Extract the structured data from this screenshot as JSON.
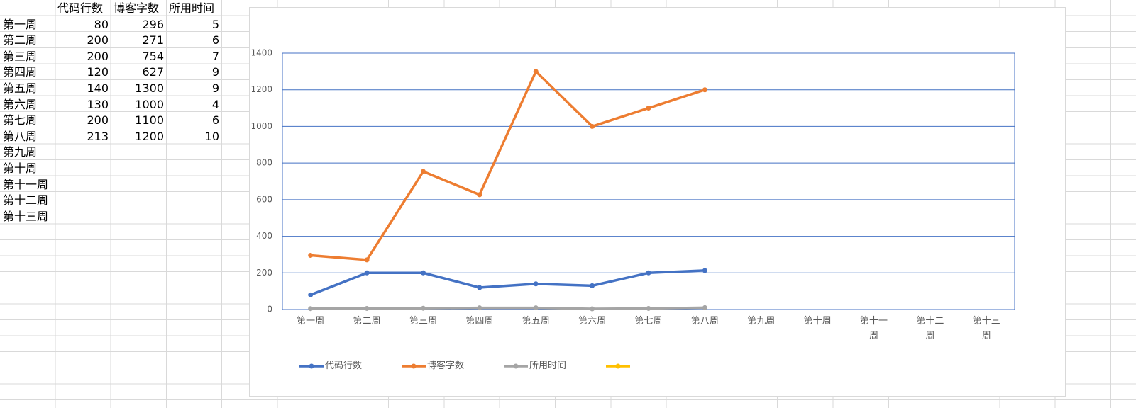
{
  "chart_data": {
    "type": "line",
    "categories": [
      "第一周",
      "第二周",
      "第三周",
      "第四周",
      "第五周",
      "第六周",
      "第七周",
      "第八周",
      "第九周",
      "第十周",
      "第十一周",
      "第十二周",
      "第十三周"
    ],
    "series": [
      {
        "name": "代码行数",
        "color": "#4472c4",
        "values": [
          80,
          200,
          200,
          120,
          140,
          130,
          200,
          213,
          null,
          null,
          null,
          null,
          null
        ]
      },
      {
        "name": "博客字数",
        "color": "#ed7d31",
        "values": [
          296,
          271,
          754,
          627,
          1300,
          1000,
          1100,
          1200,
          null,
          null,
          null,
          null,
          null
        ]
      },
      {
        "name": "所用时间",
        "color": "#a5a5a5",
        "values": [
          5,
          6,
          7,
          9,
          9,
          4,
          6,
          10,
          null,
          null,
          null,
          null,
          null
        ]
      },
      {
        "color": "#ffc000",
        "values": [
          null,
          null,
          null,
          null,
          null,
          null,
          null,
          null,
          null,
          null,
          null,
          null,
          null
        ]
      }
    ],
    "ylim": [
      0,
      1400
    ],
    "yticks": [
      0,
      200,
      400,
      600,
      800,
      1000,
      1200,
      1400
    ],
    "grid": true
  }
}
